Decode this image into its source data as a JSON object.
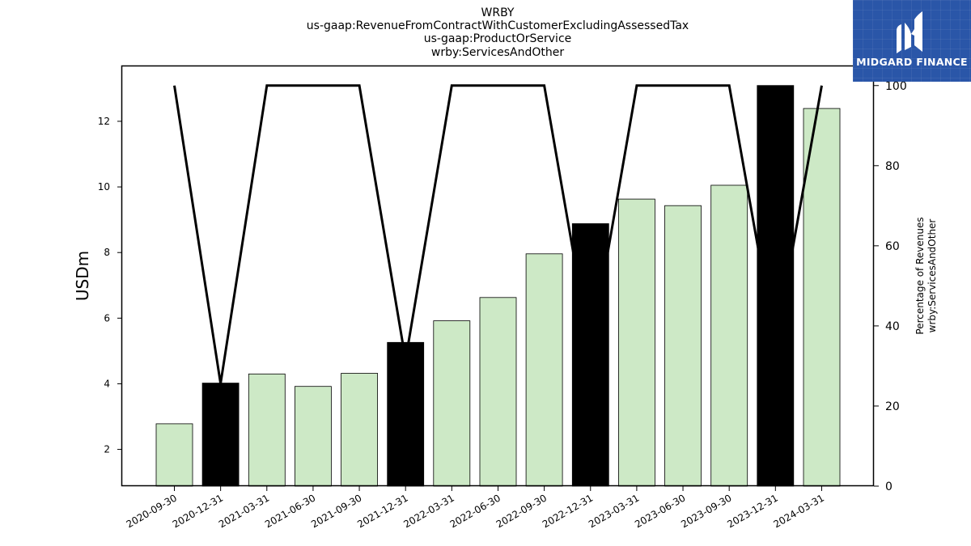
{
  "logo": {
    "brand": "MIDGARD FINANCE",
    "icon": "midgard-logo-icon",
    "color": "#2a56a8"
  },
  "chart_data": {
    "type": "bar",
    "title_lines": [
      "WRBY",
      "us-gaap:RevenueFromContractWithCustomerExcludingAssessedTax",
      "us-gaap:ProductOrService",
      "wrby:ServicesAndOther"
    ],
    "categories": [
      "2020-09-30",
      "2020-12-31",
      "2021-03-31",
      "2021-06-30",
      "2021-09-30",
      "2021-12-31",
      "2022-03-31",
      "2022-06-30",
      "2022-09-30",
      "2022-12-31",
      "2023-03-31",
      "2023-06-30",
      "2023-09-30",
      "2023-12-31",
      "2024-03-31"
    ],
    "values": [
      2.78,
      4.02,
      4.3,
      3.92,
      4.32,
      5.26,
      5.92,
      6.63,
      7.96,
      8.88,
      9.63,
      9.43,
      10.05,
      13.09,
      12.39
    ],
    "bar_colors": [
      "#cde9c6",
      "#000000",
      "#cde9c6",
      "#cde9c6",
      "#cde9c6",
      "#000000",
      "#cde9c6",
      "#cde9c6",
      "#cde9c6",
      "#000000",
      "#cde9c6",
      "#cde9c6",
      "#cde9c6",
      "#000000",
      "#cde9c6"
    ],
    "ylabel": "USDm",
    "ylim": [
      0.88,
      13.7
    ],
    "yticks": [
      2,
      4,
      6,
      8,
      10,
      12
    ],
    "secondary": {
      "type": "line",
      "values": [
        100,
        25.6,
        100,
        100,
        100,
        31.5,
        100,
        100,
        100,
        33.6,
        100,
        100,
        100,
        35.1,
        100
      ],
      "ylabel": [
        "Percentage of Revenues",
        "wrby:ServicesAndOther"
      ],
      "ylim": [
        0,
        105
      ],
      "yticks": [
        0,
        20,
        40,
        60,
        80,
        100
      ],
      "color": "#000000"
    },
    "grid": false
  }
}
